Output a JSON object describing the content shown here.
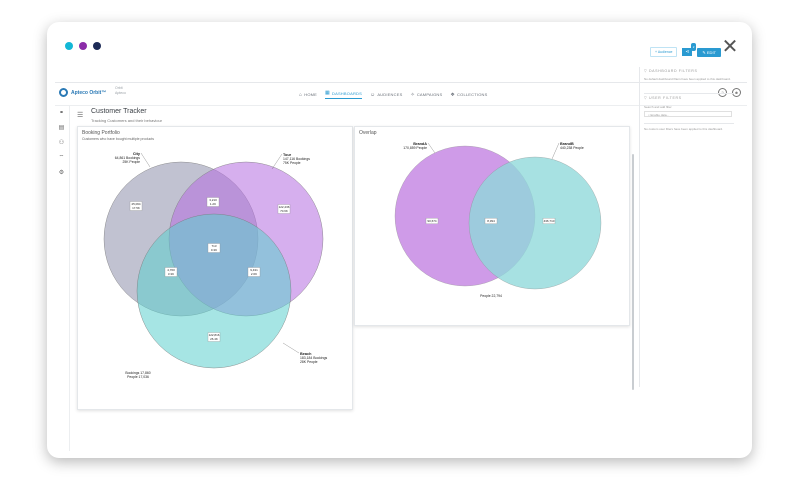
{
  "window": {
    "dot_colors": [
      "#13b7d6",
      "#8b2ca8",
      "#1d2b57"
    ],
    "close_glyph": "✕"
  },
  "nav": {
    "logo_text": "Apteco Orbit™",
    "logo_sub_1": "Orbit",
    "logo_sub_2": "Apteco",
    "tabs": [
      {
        "icon": "⌂",
        "label": "HOME"
      },
      {
        "icon": "▦",
        "label": "DASHBOARDS"
      },
      {
        "icon": "☺",
        "label": "AUDIENCES"
      },
      {
        "icon": "✧",
        "label": "CAMPAIGNS"
      },
      {
        "icon": "❖",
        "label": "COLLECTIONS"
      }
    ],
    "help_glyph": "?",
    "user_glyph": "☻"
  },
  "header": {
    "title": "Customer Tracker",
    "subtitle": "Tracking Customers and their behaviour",
    "btn_audience": "+ Audience",
    "share_badge": "2",
    "share_glyph": "⋖",
    "btn_edit": "✎ EDIT"
  },
  "booking_panel": {
    "title": "Booking Portfolio",
    "subtitle": "Customers who have bought multiple products"
  },
  "overlap_panel": {
    "title": "Overlap"
  },
  "sidebar": {
    "dashboard_filters": "DASHBOARD FILTERS",
    "dashboard_note": "No default dashboard filters have been applied to this dashboard.",
    "user_filters": "USER FILTERS",
    "search_label": "Search and add filter",
    "search_placeholder": "Enable data...",
    "custom_note": "No custom user filters have been applied to this dashboard."
  },
  "chart_data": [
    {
      "type": "venn",
      "title": "Booking Portfolio",
      "sets": [
        {
          "name": "City",
          "label_1": "64,861 Bookings",
          "label_2": "25K People",
          "color": "#8e8fab"
        },
        {
          "name": "Tour",
          "label_1": "147,116 Bookings",
          "label_2": "75K People",
          "color": "#b46ee0"
        },
        {
          "name": "Beach",
          "label_1": "183,184 Bookings",
          "label_2": "28K People",
          "color": "#5ccfcd"
        }
      ],
      "regions": [
        {
          "name": "City only",
          "line1": "45,064",
          "line2": "17.5K"
        },
        {
          "name": "City ∩ Tour",
          "line1": "3,210",
          "line2": "1.2K"
        },
        {
          "name": "Tour only",
          "line1": "122,436",
          "line2": "70.6K"
        },
        {
          "name": "City ∩ Tour ∩ Beach",
          "line1": "713",
          "line2": "0.3K"
        },
        {
          "name": "City ∩ Beach",
          "line1": "4,760",
          "line2": "3.3K"
        },
        {
          "name": "Tour ∩ Beach",
          "line1": "9,431",
          "line2": "2.6K"
        },
        {
          "name": "Beach only",
          "line1": "122,816",
          "line2": "26.4K"
        }
      ],
      "footer_1": "Bookings 17,860",
      "footer_2": "People 17,036"
    },
    {
      "type": "venn",
      "title": "Overlap",
      "sets": [
        {
          "name": "BrandA",
          "label_1": "170,859 People",
          "color": "#c17fe2"
        },
        {
          "name": "BrandB",
          "label_1": "440,238 People",
          "color": "#8ed9da"
        }
      ],
      "regions": [
        {
          "name": "BrandA only",
          "line1": "90,674"
        },
        {
          "name": "BrandA ∩ BrandB",
          "line1": "8,394"
        },
        {
          "name": "BrandB only",
          "line1": "436,710"
        }
      ],
      "footer_1": "People 22,794"
    }
  ]
}
